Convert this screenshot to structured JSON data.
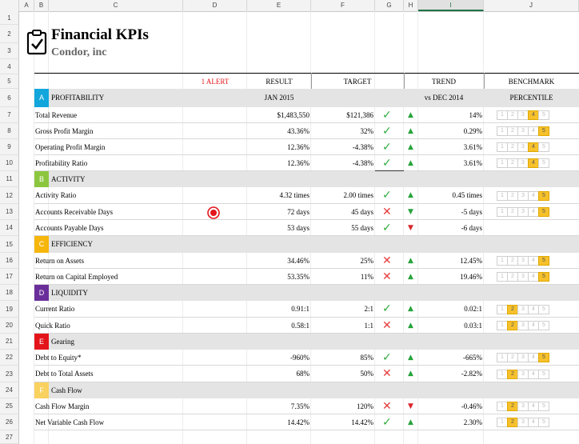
{
  "columns": [
    "A",
    "B",
    "C",
    "D",
    "E",
    "F",
    "G",
    "H",
    "I",
    "J"
  ],
  "rows": [
    "1",
    "2",
    "3",
    "4",
    "5",
    "6",
    "7",
    "8",
    "9",
    "10",
    "11",
    "12",
    "13",
    "14",
    "15",
    "16",
    "17",
    "18",
    "19",
    "20",
    "21",
    "22",
    "23",
    "24",
    "25",
    "26",
    "27"
  ],
  "title": "Financial KPIs",
  "subtitle": "Condor, inc",
  "headers": {
    "alert": "1 ALERT",
    "result": "RESULT",
    "target": "TARGET",
    "trend": "TREND",
    "benchmark": "BENCHMARK",
    "period": "JAN 2015",
    "compare": "vs DEC 2014",
    "percentile": "PERCENTILE"
  },
  "colors": {
    "accent_green": "#217346",
    "alert_red": "#e53b3b",
    "bench_on": "#f6c12b"
  },
  "sections": [
    {
      "letter": "A",
      "name": "PROFITABILITY",
      "color": "#12a6dc"
    },
    {
      "letter": "B",
      "name": "ACTIVITY",
      "color": "#8cc63f"
    },
    {
      "letter": "C",
      "name": "EFFICIENCY",
      "color": "#f6b60c"
    },
    {
      "letter": "D",
      "name": "LIQUIDITY",
      "color": "#6a2e9a"
    },
    {
      "letter": "E",
      "name": "Gearing",
      "color": "#e3151b"
    },
    {
      "letter": "F",
      "name": "Cash Flow",
      "color": "#f9d15e"
    }
  ],
  "kpis": [
    {
      "name": "Total Revenue",
      "result": "$1,483,550",
      "target": "$121,386",
      "status": "check",
      "trend": "up",
      "trend_val": "14%",
      "bench": 4
    },
    {
      "name": "Gross Profit Margin",
      "result": "43.36%",
      "target": "32%",
      "status": "check",
      "trend": "up",
      "trend_val": "0.29%",
      "bench": 5
    },
    {
      "name": "Operating Profit Margin",
      "result": "12.36%",
      "target": "-4.38%",
      "status": "check",
      "trend": "up",
      "trend_val": "3.61%",
      "bench": 4
    },
    {
      "name": "Profitability Ratio",
      "result": "12.36%",
      "target": "-4.38%",
      "status": "check",
      "trend": "up",
      "trend_val": "3.61%",
      "bench": 4
    },
    {
      "name": "Activity Ratio",
      "result": "4.32 times",
      "target": "2.00 times",
      "status": "check",
      "trend": "up",
      "trend_val": "0.45 times",
      "bench": 5
    },
    {
      "name": "Accounts Receivable Days",
      "result": "72 days",
      "target": "45 days",
      "status": "cross",
      "trend": "down-green",
      "trend_val": "-5 days",
      "bench": 5,
      "alert": true
    },
    {
      "name": "Accounts Payable Days",
      "result": "53 days",
      "target": "55 days",
      "status": "check",
      "trend": "down",
      "trend_val": "-6 days",
      "bench": 0
    },
    {
      "name": "Return on Assets",
      "result": "34.46%",
      "target": "25%",
      "status": "cross",
      "trend": "up",
      "trend_val": "12.45%",
      "bench": 5
    },
    {
      "name": "Return on Capital Employed",
      "result": "53.35%",
      "target": "11%",
      "status": "cross",
      "trend": "up",
      "trend_val": "19.46%",
      "bench": 5
    },
    {
      "name": "Current Ratio",
      "result": "0.91:1",
      "target": "2:1",
      "status": "check",
      "trend": "up",
      "trend_val": "0.02:1",
      "bench": 2
    },
    {
      "name": "Quick Ratio",
      "result": "0.58:1",
      "target": "1:1",
      "status": "cross",
      "trend": "up",
      "trend_val": "0.03:1",
      "bench": 2
    },
    {
      "name": "Debt to Equity*",
      "result": "-960%",
      "target": "85%",
      "status": "check",
      "trend": "up",
      "trend_val": "-665%",
      "bench": 5
    },
    {
      "name": "Debt to Total Assets",
      "result": "68%",
      "target": "50%",
      "status": "cross",
      "trend": "up",
      "trend_val": "-2.82%",
      "bench": 2
    },
    {
      "name": "Cash Flow Margin",
      "result": "7.35%",
      "target": "120%",
      "status": "cross",
      "trend": "down",
      "trend_val": "-0.46%",
      "bench": 2
    },
    {
      "name": "Net Variable Cash Flow",
      "result": "14.42%",
      "target": "14.42%",
      "status": "check",
      "trend": "up",
      "trend_val": "2.30%",
      "bench": 2
    }
  ],
  "bench_numbers": [
    "1",
    "2",
    "3",
    "4",
    "5"
  ]
}
